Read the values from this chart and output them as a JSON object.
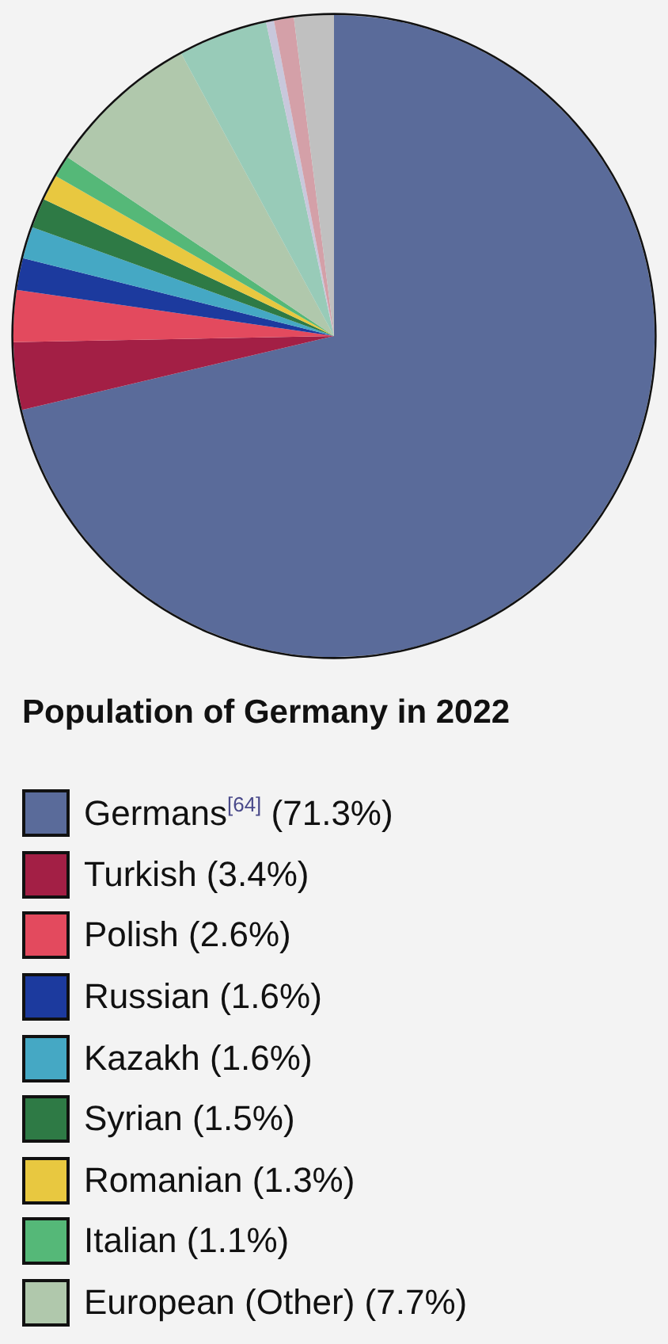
{
  "chart_data": {
    "type": "pie",
    "title": "Population of Germany in 2022",
    "legend": "bottom",
    "categories": [
      "Germans$^{[64]}$ (71.3%)",
      "Turkish (3.4%)",
      "Polish (2.6%)",
      "Russian (1.6%)",
      "Kazakh (1.6%)",
      "Syrian (1.5%)",
      "Romanian (1.3%)",
      "Italian (1.1%)",
      "European (Other) (7.7%)",
      null,
      null,
      null,
      null
    ],
    "values": [
      71.3,
      3.4,
      2.6,
      1.6,
      1.6,
      1.5,
      1.3,
      1.1,
      7.7,
      4.5,
      0.4,
      1.0,
      2.0
    ],
    "colors": [
      "#5a6b9a",
      "#a31f45",
      "#e34a5e",
      "#1c3a9e",
      "#45a8c4",
      "#2e7a45",
      "#e8c840",
      "#55b878",
      "#b0c8ac",
      "#98cbb8",
      "#c8c8dc",
      "#d4a0a8",
      "#c0c0c0"
    ]
  }
}
